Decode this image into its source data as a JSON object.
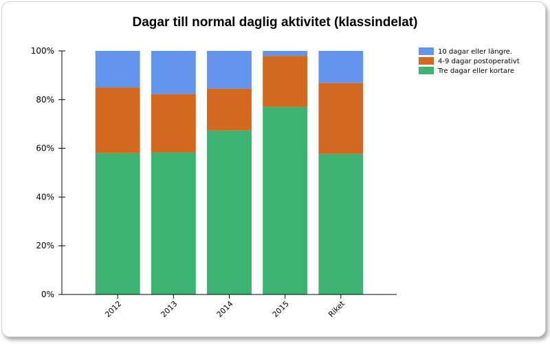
{
  "chart_data": {
    "type": "bar",
    "stacked": true,
    "percent": true,
    "title": "Dagar till normal daglig aktivitet (klassindelat)",
    "xlabel": "",
    "ylabel": "",
    "ylim": [
      0,
      100
    ],
    "y_ticks": [
      "0%",
      "20%",
      "40%",
      "60%",
      "80%",
      "100%"
    ],
    "categories": [
      "2012",
      "2013",
      "2014",
      "2015",
      "Riket"
    ],
    "legend_position": "top-right",
    "grid": false,
    "series": [
      {
        "name": "Tre dagar eller kortare",
        "color": "#3cb371",
        "values": [
          58,
          58.3,
          67.3,
          77,
          57.7
        ]
      },
      {
        "name": "4-9 dagar postoperativt",
        "color": "#d2691e",
        "values": [
          27,
          24,
          17.2,
          21,
          29.1
        ]
      },
      {
        "name": "10 dagar eller längre.",
        "color": "#6495ed",
        "values": [
          15,
          17.7,
          15.5,
          2,
          13.2
        ]
      }
    ],
    "legend_order": [
      2,
      1,
      0
    ]
  }
}
